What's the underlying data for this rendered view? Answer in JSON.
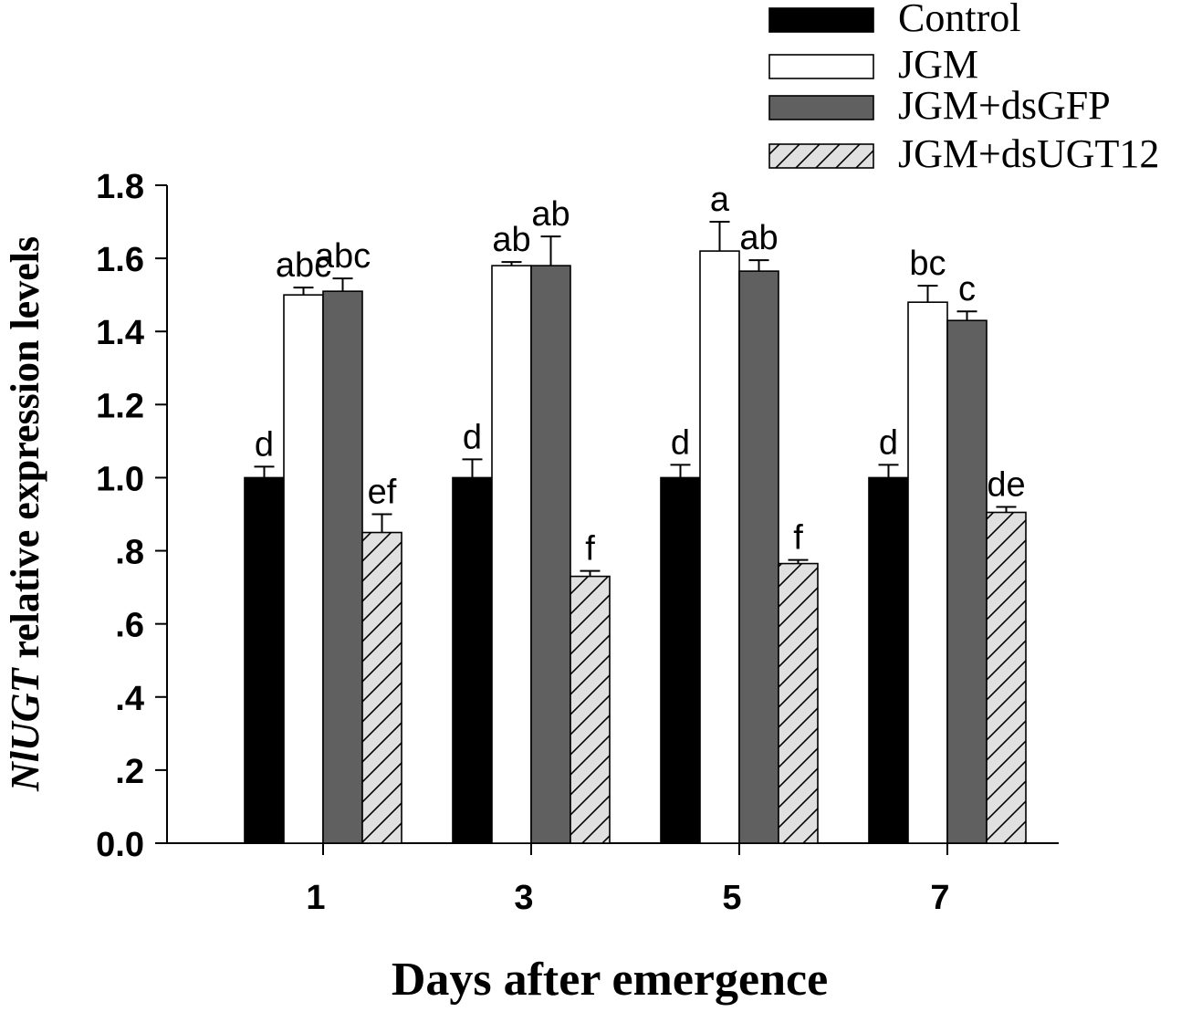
{
  "chart_data": {
    "type": "bar",
    "title": "",
    "xlabel": "Days after emergence",
    "ylabel_italic": "NlUGT",
    "ylabel_rest": " relative expression levels",
    "ylim": [
      0,
      1.8
    ],
    "y_ticks": [
      0,
      0.2,
      0.4,
      0.6,
      0.8,
      1.0,
      1.2,
      1.4,
      1.6,
      1.8
    ],
    "y_tick_labels": [
      "0.0",
      ".2",
      ".4",
      ".6",
      ".8",
      "1.0",
      "1.2",
      "1.4",
      "1.6",
      "1.8"
    ],
    "categories": [
      "1",
      "3",
      "5",
      "7"
    ],
    "legend_position": "top-right",
    "series": [
      {
        "name": "Control",
        "fill": "#000000",
        "pattern": "solid",
        "values": [
          1.0,
          1.0,
          1.0,
          1.0
        ],
        "errors": [
          0.03,
          0.05,
          0.035,
          0.035
        ],
        "sig": [
          "d",
          "d",
          "d",
          "d"
        ]
      },
      {
        "name": "JGM",
        "fill": "#ffffff",
        "pattern": "solid",
        "values": [
          1.5,
          1.58,
          1.62,
          1.48
        ],
        "errors": [
          0.02,
          0.01,
          0.08,
          0.045
        ],
        "sig": [
          "abc",
          "ab",
          "a",
          "bc"
        ]
      },
      {
        "name": "JGM+dsGFP",
        "fill": "#606060",
        "pattern": "solid",
        "values": [
          1.51,
          1.58,
          1.565,
          1.43
        ],
        "errors": [
          0.035,
          0.08,
          0.03,
          0.025
        ],
        "sig": [
          "abc",
          "ab",
          "ab",
          "c"
        ]
      },
      {
        "name": "JGM+dsUGT12",
        "fill": "#e0e0e0",
        "pattern": "hatch",
        "values": [
          0.85,
          0.73,
          0.765,
          0.905
        ],
        "errors": [
          0.05,
          0.015,
          0.01,
          0.015
        ],
        "sig": [
          "ef",
          "f",
          "f",
          "de"
        ]
      }
    ]
  }
}
